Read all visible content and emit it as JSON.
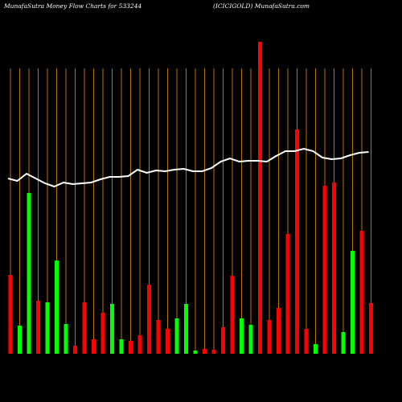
{
  "chart_data": {
    "type": "bar",
    "title": "MunafaSutra  Money Flow  Charts for 533244",
    "subtitle": "(ICICIGOLD) MunafaSutra.com",
    "values": [
      98,
      35,
      200,
      66,
      64,
      116,
      37,
      10,
      64,
      18,
      51,
      62,
      18,
      16,
      23,
      86,
      42,
      31,
      44,
      62,
      4,
      6,
      5,
      33,
      97,
      44,
      36,
      388,
      42,
      57,
      149,
      279,
      31,
      12,
      209,
      213,
      27,
      128,
      153,
      63
    ],
    "colors": [
      "red",
      "lime",
      "lime",
      "red",
      "lime",
      "lime",
      "lime",
      "red",
      "red",
      "red",
      "red",
      "lime",
      "lime",
      "red",
      "red",
      "red",
      "red",
      "red",
      "lime",
      "lime",
      "lime",
      "red",
      "red",
      "red",
      "red",
      "lime",
      "lime",
      "red",
      "red",
      "red",
      "red",
      "red",
      "red",
      "lime",
      "red",
      "red",
      "lime",
      "lime",
      "red",
      "red"
    ],
    "line_values": [
      218,
      215,
      224,
      218,
      212,
      208,
      213,
      211,
      212,
      213,
      217,
      220,
      220,
      221,
      229,
      225,
      228,
      227,
      229,
      230,
      227,
      227,
      231,
      239,
      243,
      239,
      240,
      240,
      239,
      246,
      252,
      252,
      255,
      252,
      244,
      242,
      243,
      247,
      250,
      251
    ],
    "line_color": "white",
    "grid_color": "#b8730a",
    "ylim": [
      0,
      440
    ]
  }
}
